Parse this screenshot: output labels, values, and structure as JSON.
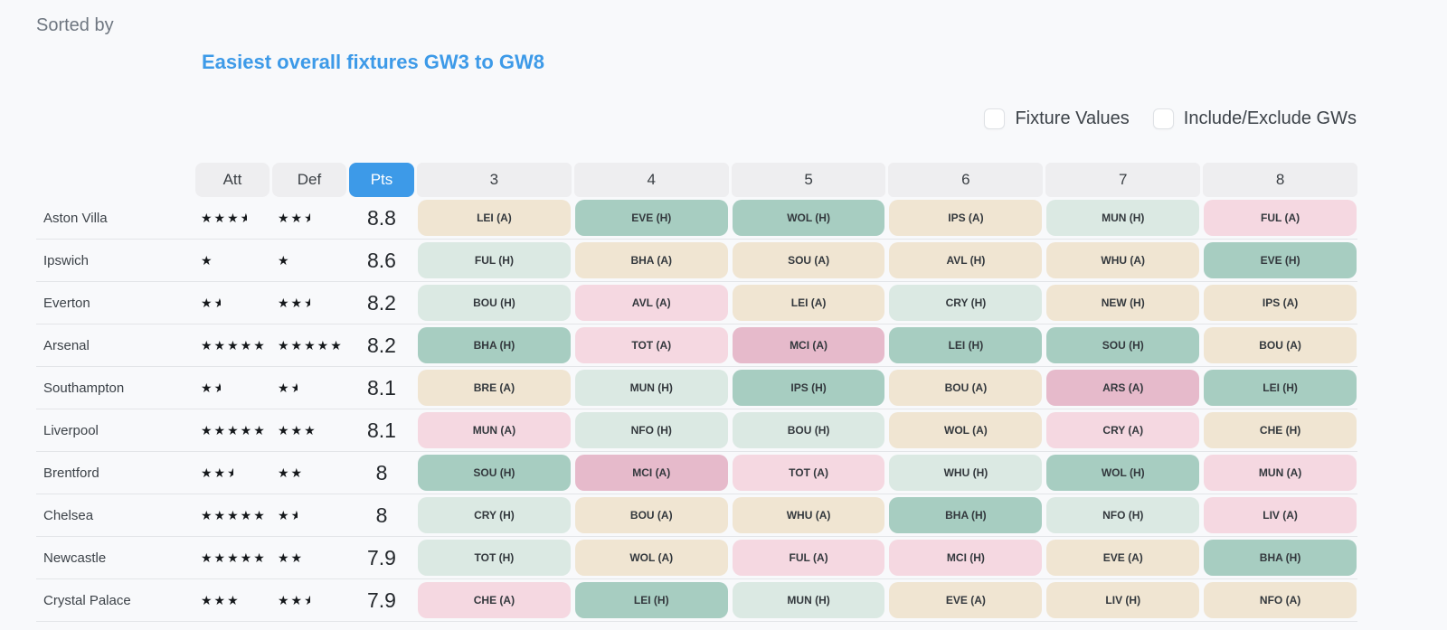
{
  "page": {
    "sorted_by_label": "Sorted by",
    "title": "Easiest overall fixtures GW3 to GW8",
    "checkboxes": [
      {
        "label": "Fixture Values",
        "checked": false
      },
      {
        "label": "Include/Exclude GWs",
        "checked": false
      }
    ]
  },
  "table": {
    "headers": {
      "att": "Att",
      "def": "Def",
      "pts": "Pts",
      "gameweeks": [
        "3",
        "4",
        "5",
        "6",
        "7",
        "8"
      ]
    },
    "colors": {
      "accent_blue": "#3d9ae8",
      "header_gray": "#eeeef0",
      "difficulty": {
        "easy": "#a7cdc1",
        "ok": "#dbe9e3",
        "neutral": "#f0e5d2",
        "hard": "#f5d8e1",
        "very_hard": "#e6bacb"
      }
    },
    "rows": [
      {
        "team": "Aston Villa",
        "att": 3.5,
        "def": 2.5,
        "pts": "8.8",
        "fixtures": [
          {
            "label": "LEI (A)",
            "level": "neutral"
          },
          {
            "label": "EVE (H)",
            "level": "easy"
          },
          {
            "label": "WOL (H)",
            "level": "easy"
          },
          {
            "label": "IPS (A)",
            "level": "neutral"
          },
          {
            "label": "MUN (H)",
            "level": "ok"
          },
          {
            "label": "FUL (A)",
            "level": "hard"
          }
        ]
      },
      {
        "team": "Ipswich",
        "att": 1,
        "def": 1,
        "pts": "8.6",
        "fixtures": [
          {
            "label": "FUL (H)",
            "level": "ok"
          },
          {
            "label": "BHA (A)",
            "level": "neutral"
          },
          {
            "label": "SOU (A)",
            "level": "neutral"
          },
          {
            "label": "AVL (H)",
            "level": "neutral"
          },
          {
            "label": "WHU (A)",
            "level": "neutral"
          },
          {
            "label": "EVE (H)",
            "level": "easy"
          }
        ]
      },
      {
        "team": "Everton",
        "att": 1.5,
        "def": 2.5,
        "pts": "8.2",
        "fixtures": [
          {
            "label": "BOU (H)",
            "level": "ok"
          },
          {
            "label": "AVL (A)",
            "level": "hard"
          },
          {
            "label": "LEI (A)",
            "level": "neutral"
          },
          {
            "label": "CRY (H)",
            "level": "ok"
          },
          {
            "label": "NEW (H)",
            "level": "neutral"
          },
          {
            "label": "IPS (A)",
            "level": "neutral"
          }
        ]
      },
      {
        "team": "Arsenal",
        "att": 5,
        "def": 5,
        "pts": "8.2",
        "fixtures": [
          {
            "label": "BHA (H)",
            "level": "easy"
          },
          {
            "label": "TOT (A)",
            "level": "hard"
          },
          {
            "label": "MCI (A)",
            "level": "very_hard"
          },
          {
            "label": "LEI (H)",
            "level": "easy"
          },
          {
            "label": "SOU (H)",
            "level": "easy"
          },
          {
            "label": "BOU (A)",
            "level": "neutral"
          }
        ]
      },
      {
        "team": "Southampton",
        "att": 1.5,
        "def": 1.5,
        "pts": "8.1",
        "fixtures": [
          {
            "label": "BRE (A)",
            "level": "neutral"
          },
          {
            "label": "MUN (H)",
            "level": "ok"
          },
          {
            "label": "IPS (H)",
            "level": "easy"
          },
          {
            "label": "BOU (A)",
            "level": "neutral"
          },
          {
            "label": "ARS (A)",
            "level": "very_hard"
          },
          {
            "label": "LEI (H)",
            "level": "easy"
          }
        ]
      },
      {
        "team": "Liverpool",
        "att": 5,
        "def": 3,
        "pts": "8.1",
        "fixtures": [
          {
            "label": "MUN (A)",
            "level": "hard"
          },
          {
            "label": "NFO (H)",
            "level": "ok"
          },
          {
            "label": "BOU (H)",
            "level": "ok"
          },
          {
            "label": "WOL (A)",
            "level": "neutral"
          },
          {
            "label": "CRY (A)",
            "level": "hard"
          },
          {
            "label": "CHE (H)",
            "level": "neutral"
          }
        ]
      },
      {
        "team": "Brentford",
        "att": 2.5,
        "def": 2,
        "pts": "8",
        "fixtures": [
          {
            "label": "SOU (H)",
            "level": "easy"
          },
          {
            "label": "MCI (A)",
            "level": "very_hard"
          },
          {
            "label": "TOT (A)",
            "level": "hard"
          },
          {
            "label": "WHU (H)",
            "level": "ok"
          },
          {
            "label": "WOL (H)",
            "level": "easy"
          },
          {
            "label": "MUN (A)",
            "level": "hard"
          }
        ]
      },
      {
        "team": "Chelsea",
        "att": 5,
        "def": 1.5,
        "pts": "8",
        "fixtures": [
          {
            "label": "CRY (H)",
            "level": "ok"
          },
          {
            "label": "BOU (A)",
            "level": "neutral"
          },
          {
            "label": "WHU (A)",
            "level": "neutral"
          },
          {
            "label": "BHA (H)",
            "level": "easy"
          },
          {
            "label": "NFO (H)",
            "level": "ok"
          },
          {
            "label": "LIV (A)",
            "level": "hard"
          }
        ]
      },
      {
        "team": "Newcastle",
        "att": 5,
        "def": 2,
        "pts": "7.9",
        "fixtures": [
          {
            "label": "TOT (H)",
            "level": "ok"
          },
          {
            "label": "WOL (A)",
            "level": "neutral"
          },
          {
            "label": "FUL (A)",
            "level": "hard"
          },
          {
            "label": "MCI (H)",
            "level": "hard"
          },
          {
            "label": "EVE (A)",
            "level": "neutral"
          },
          {
            "label": "BHA (H)",
            "level": "easy"
          }
        ]
      },
      {
        "team": "Crystal Palace",
        "att": 3,
        "def": 2.5,
        "pts": "7.9",
        "fixtures": [
          {
            "label": "CHE (A)",
            "level": "hard"
          },
          {
            "label": "LEI (H)",
            "level": "easy"
          },
          {
            "label": "MUN (H)",
            "level": "ok"
          },
          {
            "label": "EVE (A)",
            "level": "neutral"
          },
          {
            "label": "LIV (H)",
            "level": "neutral"
          },
          {
            "label": "NFO (A)",
            "level": "neutral"
          }
        ]
      }
    ]
  }
}
